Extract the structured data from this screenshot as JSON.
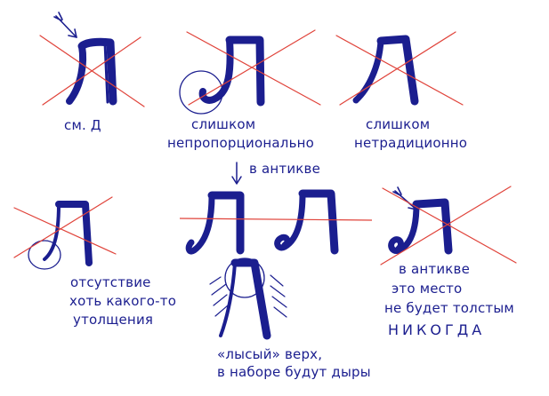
{
  "colors": {
    "ink": "#1b1e8f",
    "strike": "#e0433a",
    "background": "#ffffff"
  },
  "letter": "Л",
  "notes": {
    "see_d": "см. Д",
    "too_disproportional_1": "слишком",
    "too_disproportional_2": "непропорционально",
    "too_nontraditional_1": "слишком",
    "too_nontraditional_2": "нетрадиционно",
    "in_antiqua_top": "в антикве",
    "no_thickening_1": "отсутствие",
    "no_thickening_2": "хоть какого-то",
    "no_thickening_3": "утолщения",
    "bald_top_1": "«лысый» верх,",
    "bald_top_2": "в наборе будут дыры",
    "antiqua_right_1": "в антикве",
    "antiqua_right_2": "это место",
    "antiqua_right_3": "не будет толстым",
    "antiqua_right_4": "НИКОГДА"
  },
  "icons": [
    "arrow-icon",
    "down-arrow-icon",
    "circle-highlight",
    "hatch-marks",
    "strike-cross"
  ]
}
